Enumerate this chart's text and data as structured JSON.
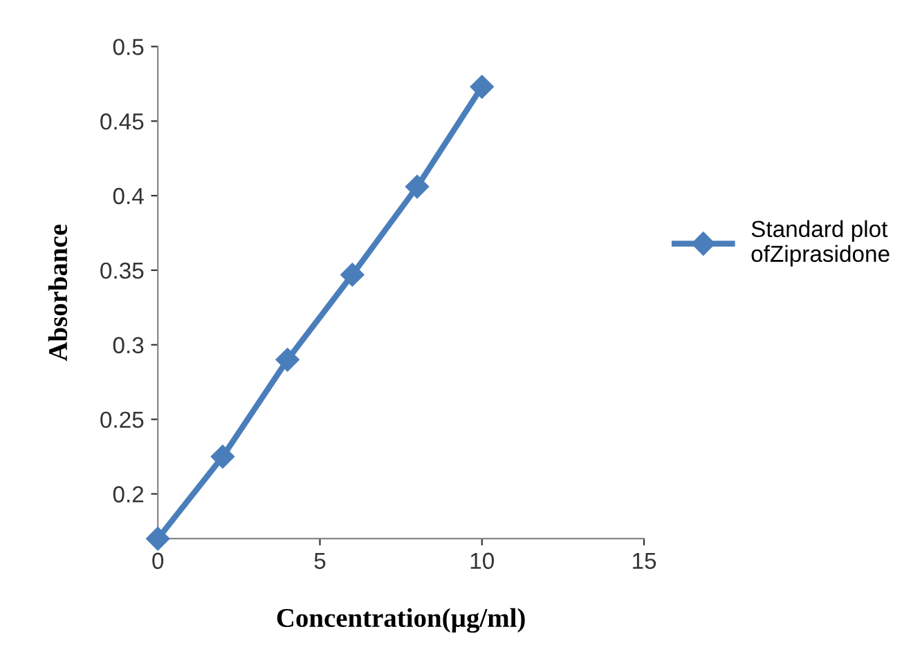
{
  "chart_data": {
    "type": "line",
    "xlabel": "Concentration(µg/ml)",
    "ylabel": "Absorbance",
    "x": [
      0,
      2,
      4,
      6,
      8,
      10
    ],
    "series": [
      {
        "name": "Standard plot\nofZiprasidone",
        "color": "#4a7ebb",
        "values": [
          0.17,
          0.225,
          0.29,
          0.347,
          0.406,
          0.473
        ]
      }
    ],
    "xlim": [
      0,
      15
    ],
    "xticks": [
      0,
      5,
      10,
      15
    ],
    "ylim": [
      0.17,
      0.5
    ],
    "yticks": [
      0.2,
      0.25,
      0.3,
      0.35,
      0.4,
      0.45,
      0.5
    ],
    "marker": "diamond",
    "line_style": "solid",
    "legend": "right",
    "grid": false
  }
}
